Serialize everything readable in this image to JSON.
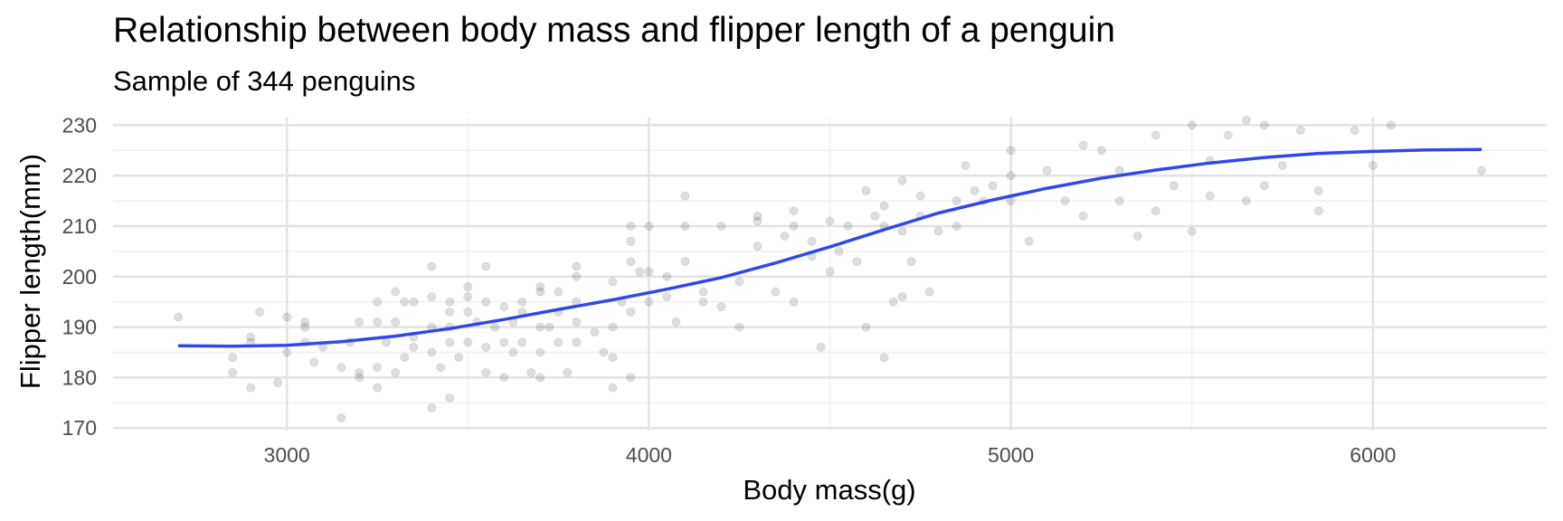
{
  "chart_data": {
    "type": "scatter",
    "title": "Relationship between body mass and flipper length of a penguin",
    "subtitle": "Sample of 344 penguins",
    "xlabel": "Body mass(g)",
    "ylabel": "Flipper length(mm)",
    "xlim": [
      2520,
      6480
    ],
    "ylim": [
      169.5,
      231.5
    ],
    "x_ticks": [
      3000,
      4000,
      5000,
      6000
    ],
    "y_ticks": [
      170,
      180,
      190,
      200,
      210,
      220,
      230
    ],
    "grid": true,
    "point_color": "#000000",
    "point_opacity": 0.13,
    "line_color": "#3047f0",
    "points": [
      [
        2700,
        192
      ],
      [
        2850,
        184
      ],
      [
        2850,
        181
      ],
      [
        2900,
        187
      ],
      [
        2900,
        188
      ],
      [
        2900,
        178
      ],
      [
        2925,
        193
      ],
      [
        2975,
        179
      ],
      [
        3000,
        185
      ],
      [
        3000,
        192
      ],
      [
        3050,
        190
      ],
      [
        3050,
        191
      ],
      [
        3050,
        187
      ],
      [
        3075,
        183
      ],
      [
        3100,
        186
      ],
      [
        3150,
        172
      ],
      [
        3150,
        182
      ],
      [
        3175,
        187
      ],
      [
        3200,
        180
      ],
      [
        3200,
        191
      ],
      [
        3200,
        181
      ],
      [
        3250,
        178
      ],
      [
        3250,
        182
      ],
      [
        3250,
        191
      ],
      [
        3250,
        195
      ],
      [
        3275,
        187
      ],
      [
        3300,
        191
      ],
      [
        3300,
        197
      ],
      [
        3300,
        181
      ],
      [
        3325,
        184
      ],
      [
        3325,
        195
      ],
      [
        3350,
        186
      ],
      [
        3350,
        188
      ],
      [
        3350,
        195
      ],
      [
        3400,
        190
      ],
      [
        3400,
        185
      ],
      [
        3400,
        196
      ],
      [
        3400,
        202
      ],
      [
        3400,
        174
      ],
      [
        3425,
        182
      ],
      [
        3450,
        190
      ],
      [
        3450,
        195
      ],
      [
        3450,
        187
      ],
      [
        3450,
        176
      ],
      [
        3450,
        193
      ],
      [
        3475,
        184
      ],
      [
        3500,
        193
      ],
      [
        3500,
        196
      ],
      [
        3500,
        187
      ],
      [
        3500,
        198
      ],
      [
        3525,
        191
      ],
      [
        3550,
        195
      ],
      [
        3550,
        181
      ],
      [
        3550,
        186
      ],
      [
        3550,
        202
      ],
      [
        3575,
        190
      ],
      [
        3600,
        187
      ],
      [
        3600,
        194
      ],
      [
        3600,
        180
      ],
      [
        3625,
        191
      ],
      [
        3625,
        185
      ],
      [
        3650,
        195
      ],
      [
        3650,
        187
      ],
      [
        3650,
        193
      ],
      [
        3675,
        181
      ],
      [
        3700,
        190
      ],
      [
        3700,
        197
      ],
      [
        3700,
        180
      ],
      [
        3700,
        185
      ],
      [
        3700,
        198
      ],
      [
        3725,
        190
      ],
      [
        3750,
        193
      ],
      [
        3750,
        187
      ],
      [
        3750,
        197
      ],
      [
        3775,
        181
      ],
      [
        3800,
        195
      ],
      [
        3800,
        187
      ],
      [
        3800,
        191
      ],
      [
        3800,
        200
      ],
      [
        3800,
        202
      ],
      [
        3850,
        189
      ],
      [
        3875,
        185
      ],
      [
        3900,
        190
      ],
      [
        3900,
        199
      ],
      [
        3900,
        178
      ],
      [
        3900,
        184
      ],
      [
        3925,
        195
      ],
      [
        3950,
        193
      ],
      [
        3950,
        207
      ],
      [
        3950,
        210
      ],
      [
        3950,
        203
      ],
      [
        3950,
        180
      ],
      [
        3975,
        201
      ],
      [
        4000,
        195
      ],
      [
        4000,
        210
      ],
      [
        4000,
        201
      ],
      [
        4050,
        196
      ],
      [
        4050,
        200
      ],
      [
        4075,
        191
      ],
      [
        4100,
        203
      ],
      [
        4100,
        210
      ],
      [
        4100,
        216
      ],
      [
        4150,
        195
      ],
      [
        4150,
        197
      ],
      [
        4200,
        210
      ],
      [
        4200,
        194
      ],
      [
        4250,
        190
      ],
      [
        4250,
        199
      ],
      [
        4300,
        211
      ],
      [
        4300,
        206
      ],
      [
        4300,
        212
      ],
      [
        4350,
        197
      ],
      [
        4375,
        208
      ],
      [
        4400,
        213
      ],
      [
        4400,
        210
      ],
      [
        4400,
        195
      ],
      [
        4450,
        204
      ],
      [
        4450,
        207
      ],
      [
        4475,
        186
      ],
      [
        4500,
        201
      ],
      [
        4500,
        211
      ],
      [
        4525,
        205
      ],
      [
        4550,
        210
      ],
      [
        4575,
        203
      ],
      [
        4600,
        190
      ],
      [
        4600,
        217
      ],
      [
        4625,
        212
      ],
      [
        4650,
        214
      ],
      [
        4650,
        210
      ],
      [
        4650,
        184
      ],
      [
        4675,
        195
      ],
      [
        4700,
        209
      ],
      [
        4700,
        219
      ],
      [
        4700,
        196
      ],
      [
        4725,
        203
      ],
      [
        4750,
        216
      ],
      [
        4750,
        212
      ],
      [
        4775,
        197
      ],
      [
        4800,
        209
      ],
      [
        4850,
        210
      ],
      [
        4850,
        215
      ],
      [
        4875,
        222
      ],
      [
        4900,
        217
      ],
      [
        4925,
        215
      ],
      [
        4950,
        218
      ],
      [
        5000,
        215
      ],
      [
        5000,
        220
      ],
      [
        5000,
        225
      ],
      [
        5050,
        207
      ],
      [
        5100,
        221
      ],
      [
        5150,
        215
      ],
      [
        5200,
        212
      ],
      [
        5200,
        226
      ],
      [
        5250,
        225
      ],
      [
        5300,
        215
      ],
      [
        5300,
        221
      ],
      [
        5350,
        208
      ],
      [
        5400,
        213
      ],
      [
        5400,
        228
      ],
      [
        5450,
        218
      ],
      [
        5500,
        230
      ],
      [
        5500,
        209
      ],
      [
        5550,
        216
      ],
      [
        5550,
        223
      ],
      [
        5600,
        228
      ],
      [
        5650,
        215
      ],
      [
        5650,
        231
      ],
      [
        5700,
        218
      ],
      [
        5700,
        230
      ],
      [
        5750,
        222
      ],
      [
        5800,
        229
      ],
      [
        5850,
        213
      ],
      [
        5850,
        217
      ],
      [
        5950,
        229
      ],
      [
        6000,
        222
      ],
      [
        6050,
        230
      ],
      [
        6300,
        221
      ]
    ],
    "smooth_line": [
      [
        2700,
        186.3
      ],
      [
        2850,
        186.2
      ],
      [
        3000,
        186.4
      ],
      [
        3150,
        187.1
      ],
      [
        3300,
        188.2
      ],
      [
        3450,
        189.7
      ],
      [
        3600,
        191.5
      ],
      [
        3750,
        193.5
      ],
      [
        3900,
        195.4
      ],
      [
        4050,
        197.5
      ],
      [
        4200,
        199.8
      ],
      [
        4350,
        202.7
      ],
      [
        4500,
        205.9
      ],
      [
        4650,
        209.3
      ],
      [
        4800,
        212.6
      ],
      [
        4950,
        215.2
      ],
      [
        5100,
        217.5
      ],
      [
        5250,
        219.5
      ],
      [
        5400,
        221.1
      ],
      [
        5550,
        222.5
      ],
      [
        5700,
        223.6
      ],
      [
        5850,
        224.4
      ],
      [
        6000,
        224.8
      ],
      [
        6150,
        225.1
      ],
      [
        6300,
        225.2
      ]
    ]
  }
}
